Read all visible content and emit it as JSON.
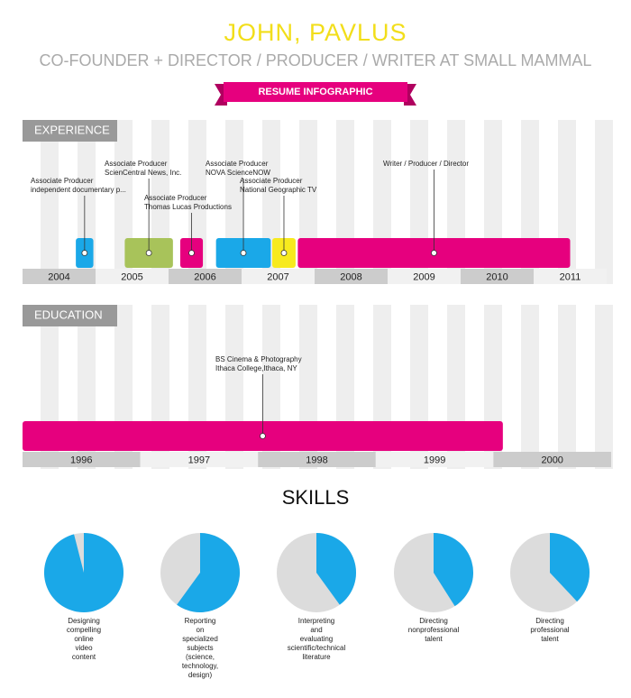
{
  "header": {
    "name": "JOHN, PAVLUS",
    "role": "CO-FOUNDER + DIRECTOR / PRODUCER / WRITER AT SMALL MAMMAL",
    "banner": "RESUME INFOGRAPHIC"
  },
  "experience": {
    "title": "EXPERIENCE",
    "xlim": [
      2004,
      2012
    ],
    "years": [
      2004,
      2005,
      2006,
      2007,
      2008,
      2009,
      2010,
      2011
    ],
    "jobs": [
      {
        "label": [
          "Associate Producer",
          "independent documentary p..."
        ],
        "start": 2004.73,
        "end": 2004.97,
        "color": "#1aa8e8"
      },
      {
        "label": [
          "Associate Producer",
          "ScienCentral News, Inc."
        ],
        "start": 2005.4,
        "end": 2006.06,
        "color": "#a8c35a"
      },
      {
        "label": [
          "Associate Producer",
          "Thomas Lucas Productions"
        ],
        "start": 2006.16,
        "end": 2006.47,
        "color": "#e6007e"
      },
      {
        "label": [
          "Associate Producer",
          "NOVA ScienceNOW"
        ],
        "start": 2006.65,
        "end": 2007.4,
        "color": "#1aa8e8"
      },
      {
        "label": [
          "Associate Producer",
          "National Geographic TV"
        ],
        "start": 2007.42,
        "end": 2007.74,
        "color": "#f7ea1e"
      },
      {
        "label": [
          "Writer / Producer / Director"
        ],
        "start": 2007.77,
        "end": 2011.5,
        "color": "#e6007e"
      }
    ]
  },
  "education": {
    "title": "EDUCATION",
    "xlim": [
      1996,
      2001
    ],
    "years": [
      1996,
      1997,
      1998,
      1999,
      2000
    ],
    "items": [
      {
        "label": [
          "BS Cinema & Photography",
          "Ithaca College,Ithaca, NY"
        ],
        "start": 1996,
        "end": 2000.08,
        "color": "#e6007e"
      }
    ]
  },
  "skills": {
    "title": "SKILLS",
    "items": [
      {
        "label": [
          "Designing",
          "compelling",
          "online",
          "video",
          "content"
        ],
        "value": 96
      },
      {
        "label": [
          "Reporting",
          "on",
          "specialized",
          "subjects",
          "(science,",
          "technology,",
          "design)"
        ],
        "value": 60
      },
      {
        "label": [
          "Interpreting",
          "and",
          "evaluating",
          "scientific/technical",
          "literature"
        ],
        "value": 40
      },
      {
        "label": [
          "Directing",
          "nonprofessional",
          "talent"
        ],
        "value": 41
      },
      {
        "label": [
          "Directing",
          "professional",
          "talent"
        ],
        "value": 38
      }
    ]
  }
}
